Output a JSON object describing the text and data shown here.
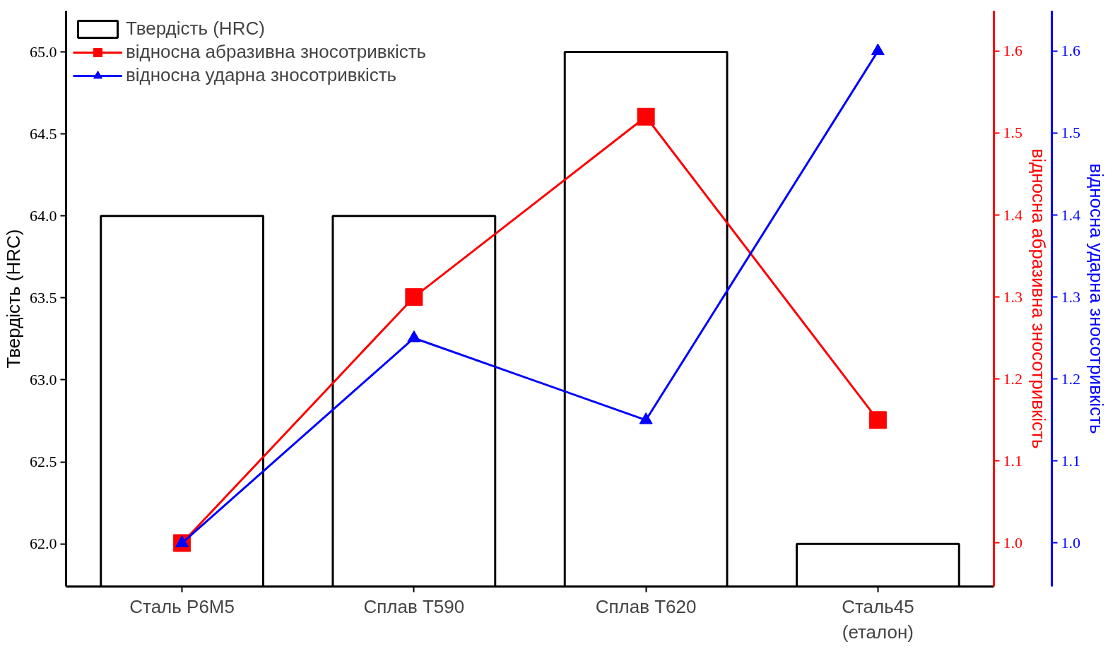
{
  "chart_data": {
    "type": "bar",
    "categories": [
      "Сталь Р6М5",
      "Сплав Т590",
      "Сплав Т620",
      "Сталь45\n(еталон)"
    ],
    "ylabel": "Твердість (HRC)",
    "y2label": "відносна абразивна зносотривкість",
    "y3label": "відносна ударна зносотривкість",
    "ylim": [
      61.74,
      65.25
    ],
    "yticks": [
      {
        "value": 62,
        "label": "62.0"
      },
      62.5,
      {
        "value": 63,
        "label": "63.0"
      },
      63.5,
      {
        "value": 64,
        "label": "64.0"
      },
      64.5,
      {
        "value": 65,
        "label": "65.0"
      }
    ],
    "y2lim": [
      0.947,
      1.649
    ],
    "y2ticks": [
      {
        "value": 1,
        "label": "1.0"
      },
      1.1,
      1.2,
      1.3,
      1.4,
      1.5,
      1.6
    ],
    "y3lim": [
      0.947,
      1.649
    ],
    "y3ticks": [
      {
        "value": 1,
        "label": "1.0"
      },
      1.1,
      1.2,
      1.3,
      1.4,
      1.5,
      1.6
    ],
    "grid": false,
    "legend": "top left",
    "series": [
      {
        "name": "Твердість (HRC)",
        "color": "#000000",
        "values": [
          64.0,
          64.0,
          65.0,
          62.0
        ]
      },
      {
        "name": "відносна абразивна зносотривкість",
        "type": "line",
        "axis": "y2",
        "color": "#ff0000",
        "marker": "square",
        "values": [
          1.0,
          1.3,
          1.52,
          1.15
        ]
      },
      {
        "name": "відносна ударна зносотривкість",
        "type": "line",
        "axis": "y3",
        "color": "#0000ff",
        "marker": "triangle",
        "values": [
          1.0,
          1.25,
          1.15,
          1.6
        ]
      }
    ]
  }
}
